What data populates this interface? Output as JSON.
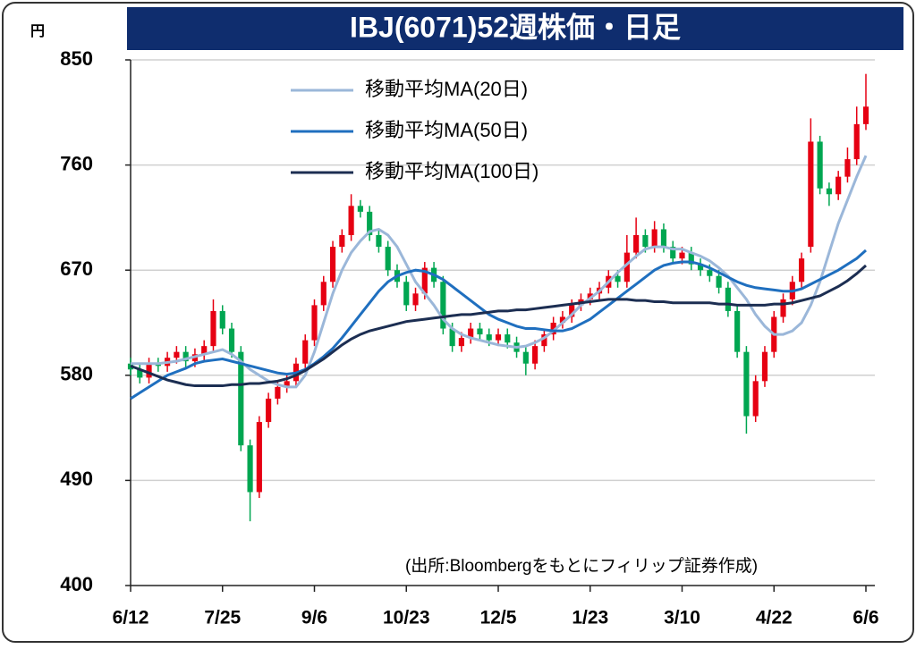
{
  "chart_data": {
    "type": "candlestick",
    "title": "IBJ(6071)52週株価・日足",
    "unit": "円",
    "source": "(出所:Bloombergをもとにフィリップ証券作成)",
    "categories": [
      "6/12",
      null,
      null,
      null,
      null,
      null,
      null,
      null,
      null,
      null,
      "7/25",
      null,
      null,
      null,
      null,
      null,
      null,
      null,
      null,
      null,
      "9/6",
      null,
      null,
      null,
      null,
      null,
      null,
      null,
      null,
      null,
      "10/23",
      null,
      null,
      null,
      null,
      null,
      null,
      null,
      null,
      null,
      "12/5",
      null,
      null,
      null,
      null,
      null,
      null,
      null,
      null,
      null,
      "1/23",
      null,
      null,
      null,
      null,
      null,
      null,
      null,
      null,
      null,
      "3/10",
      null,
      null,
      null,
      null,
      null,
      null,
      null,
      null,
      null,
      "4/22",
      null,
      null,
      null,
      null,
      null,
      null,
      null,
      null,
      null,
      "6/6"
    ],
    "open": [
      590,
      585,
      578,
      590,
      588,
      595,
      600,
      592,
      598,
      605,
      635,
      620,
      600,
      520,
      480,
      540,
      560,
      570,
      575,
      590,
      610,
      640,
      660,
      690,
      700,
      725,
      720,
      700,
      690,
      670,
      660,
      640,
      650,
      672,
      660,
      620,
      605,
      612,
      620,
      615,
      610,
      615,
      608,
      600,
      590,
      605,
      615,
      625,
      630,
      640,
      645,
      650,
      655,
      665,
      660,
      685,
      700,
      690,
      705,
      690,
      680,
      685,
      675,
      670,
      665,
      655,
      635,
      600,
      545,
      575,
      600,
      630,
      645,
      660,
      690,
      780,
      740,
      735,
      750,
      765,
      795
    ],
    "high": [
      595,
      590,
      595,
      595,
      600,
      605,
      605,
      603,
      610,
      645,
      640,
      625,
      605,
      525,
      545,
      565,
      575,
      580,
      595,
      615,
      645,
      665,
      695,
      705,
      735,
      730,
      725,
      705,
      695,
      675,
      665,
      655,
      677,
      677,
      665,
      625,
      617,
      625,
      625,
      620,
      620,
      620,
      613,
      605,
      610,
      620,
      630,
      635,
      645,
      650,
      655,
      660,
      670,
      670,
      700,
      715,
      705,
      712,
      710,
      695,
      690,
      690,
      680,
      675,
      670,
      660,
      640,
      605,
      580,
      605,
      635,
      650,
      665,
      685,
      800,
      785,
      745,
      755,
      775,
      810,
      838
    ],
    "low": [
      580,
      573,
      573,
      583,
      583,
      590,
      587,
      587,
      593,
      600,
      615,
      595,
      515,
      455,
      475,
      535,
      555,
      565,
      570,
      585,
      605,
      635,
      655,
      685,
      695,
      715,
      695,
      685,
      665,
      655,
      635,
      635,
      645,
      655,
      615,
      600,
      600,
      607,
      610,
      605,
      605,
      603,
      595,
      580,
      585,
      600,
      610,
      620,
      625,
      635,
      640,
      645,
      650,
      655,
      655,
      680,
      685,
      685,
      685,
      675,
      675,
      670,
      665,
      660,
      650,
      630,
      595,
      530,
      540,
      570,
      595,
      625,
      640,
      655,
      685,
      735,
      725,
      730,
      745,
      760,
      790
    ],
    "close": [
      585,
      578,
      590,
      588,
      595,
      600,
      592,
      598,
      605,
      635,
      620,
      600,
      520,
      480,
      540,
      560,
      570,
      575,
      590,
      610,
      640,
      660,
      690,
      700,
      725,
      720,
      700,
      690,
      670,
      660,
      640,
      650,
      672,
      660,
      620,
      605,
      612,
      620,
      615,
      610,
      615,
      608,
      600,
      590,
      605,
      615,
      625,
      630,
      640,
      645,
      650,
      655,
      665,
      660,
      685,
      700,
      690,
      705,
      690,
      680,
      685,
      675,
      670,
      665,
      655,
      635,
      600,
      545,
      575,
      600,
      630,
      645,
      660,
      680,
      780,
      740,
      735,
      750,
      765,
      795,
      810
    ],
    "up_color": "#e60012",
    "down_color": "#00a651",
    "series": [
      {
        "name": "移動平均MA(20日)",
        "color": "#9bb7d9",
        "values": [
          590,
          590,
          590,
          590,
          591,
          592,
          594,
          596,
          598,
          600,
          602,
          598,
          592,
          585,
          580,
          575,
          572,
          570,
          570,
          580,
          600,
          625,
          650,
          670,
          685,
          695,
          703,
          705,
          700,
          690,
          675,
          660,
          650,
          640,
          628,
          620,
          615,
          612,
          610,
          608,
          606,
          605,
          604,
          605,
          608,
          612,
          618,
          625,
          632,
          640,
          646,
          652,
          660,
          668,
          675,
          682,
          688,
          690,
          690,
          688,
          688,
          685,
          682,
          678,
          672,
          665,
          655,
          645,
          632,
          622,
          615,
          615,
          618,
          625,
          640,
          660,
          685,
          710,
          730,
          750,
          768
        ]
      },
      {
        "name": "移動平均MA(50日)",
        "color": "#1f6fbf",
        "values": [
          560,
          565,
          570,
          575,
          580,
          583,
          586,
          590,
          592,
          593,
          594,
          592,
          590,
          588,
          586,
          584,
          582,
          581,
          582,
          585,
          590,
          596,
          603,
          612,
          622,
          632,
          642,
          652,
          660,
          665,
          668,
          670,
          669,
          666,
          662,
          656,
          650,
          644,
          638,
          632,
          628,
          625,
          622,
          620,
          620,
          619,
          618,
          618,
          620,
          624,
          628,
          634,
          640,
          646,
          652,
          658,
          664,
          670,
          674,
          676,
          677,
          677,
          675,
          672,
          668,
          664,
          660,
          657,
          655,
          654,
          653,
          652,
          652,
          654,
          658,
          662,
          666,
          670,
          675,
          680,
          687
        ]
      },
      {
        "name": "移動平均MA(100日)",
        "color": "#1c2e52",
        "values": [
          588,
          585,
          582,
          579,
          576,
          574,
          572,
          571,
          571,
          571,
          571,
          572,
          572,
          573,
          573,
          574,
          575,
          577,
          580,
          584,
          589,
          594,
          600,
          606,
          611,
          615,
          618,
          620,
          622,
          624,
          626,
          627,
          628,
          629,
          630,
          631,
          632,
          632,
          633,
          634,
          635,
          635,
          636,
          636,
          637,
          638,
          639,
          640,
          641,
          642,
          643,
          644,
          645,
          645,
          645,
          644,
          644,
          643,
          643,
          642,
          642,
          642,
          642,
          642,
          641,
          641,
          640,
          640,
          640,
          640,
          641,
          641,
          642,
          644,
          646,
          648,
          652,
          656,
          661,
          667,
          674
        ]
      }
    ],
    "ylim": [
      400,
      850
    ],
    "yticks": [
      400,
      490,
      580,
      670,
      760,
      850
    ],
    "grid": true
  }
}
